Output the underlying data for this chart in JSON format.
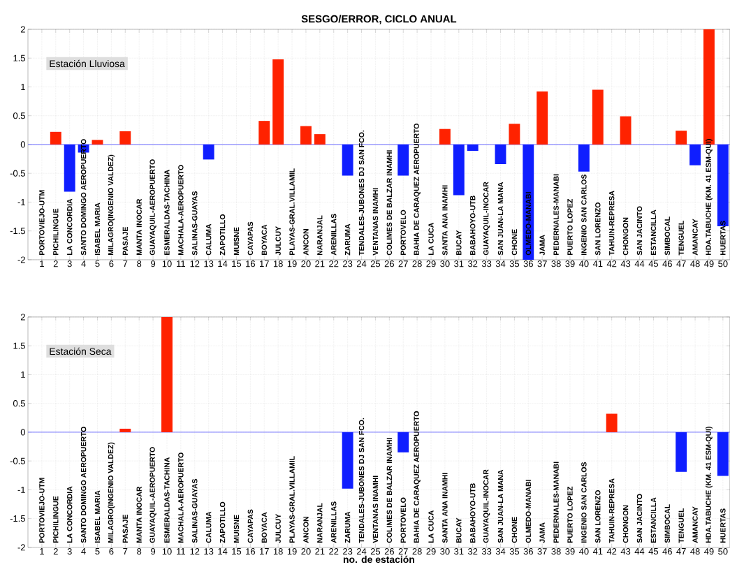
{
  "chart_data": [
    {
      "type": "bar",
      "title": "SESGO/ERROR, CICLO ANUAL",
      "subtitle": "Estación Lluviosa",
      "x": [
        1,
        2,
        3,
        4,
        5,
        6,
        7,
        8,
        9,
        10,
        11,
        12,
        13,
        14,
        15,
        16,
        17,
        18,
        19,
        20,
        21,
        22,
        23,
        24,
        25,
        26,
        27,
        28,
        29,
        30,
        31,
        32,
        33,
        34,
        35,
        36,
        37,
        38,
        39,
        40,
        41,
        42,
        43,
        44,
        45,
        46,
        47,
        48,
        49,
        50
      ],
      "values": [
        0,
        0.22,
        -0.82,
        -0.14,
        0.08,
        0,
        0.23,
        0,
        0,
        0,
        0,
        0,
        -0.26,
        0,
        0,
        0,
        0.41,
        1.48,
        0,
        0.32,
        0.18,
        0,
        -0.54,
        0,
        0,
        0,
        -0.54,
        0,
        0,
        0.27,
        -0.88,
        -0.11,
        0,
        -0.34,
        0.36,
        -2,
        0.92,
        0,
        0,
        -0.47,
        0.95,
        0,
        0.49,
        0,
        0,
        0,
        0.24,
        -0.36,
        2,
        -1.42
      ],
      "colors": [
        "#ff2200",
        "#ff2200",
        "#0f1eff",
        "#0f1eff",
        "#ff2200",
        "#ff2200",
        "#ff2200",
        "#ff2200",
        "#ff2200",
        "#ff2200",
        "#ff2200",
        "#ff2200",
        "#0f1eff",
        "#ff2200",
        "#ff2200",
        "#ff2200",
        "#ff2200",
        "#ff2200",
        "#ff2200",
        "#ff2200",
        "#ff2200",
        "#ff2200",
        "#0f1eff",
        "#ff2200",
        "#ff2200",
        "#ff2200",
        "#0f1eff",
        "#ff2200",
        "#ff2200",
        "#ff2200",
        "#0f1eff",
        "#0f1eff",
        "#ff2200",
        "#0f1eff",
        "#ff2200",
        "#0f1eff",
        "#ff2200",
        "#ff2200",
        "#ff2200",
        "#0f1eff",
        "#ff2200",
        "#ff2200",
        "#ff2200",
        "#ff2200",
        "#ff2200",
        "#ff2200",
        "#ff2200",
        "#0f1eff",
        "#ff2200",
        "#0f1eff"
      ],
      "xlim": [
        0,
        50.5
      ],
      "ylim": [
        -2,
        2
      ],
      "xticks": [
        1,
        2,
        3,
        4,
        5,
        6,
        7,
        8,
        9,
        10,
        11,
        12,
        13,
        14,
        15,
        16,
        17,
        18,
        19,
        20,
        21,
        22,
        23,
        24,
        25,
        26,
        27,
        28,
        29,
        30,
        31,
        32,
        33,
        34,
        35,
        36,
        37,
        38,
        39,
        40,
        41,
        42,
        43,
        44,
        45,
        46,
        47,
        48,
        49,
        50
      ],
      "yticks": [
        -2,
        -1.5,
        -1,
        -0.5,
        0,
        0.5,
        1,
        1.5,
        2
      ],
      "grid": true,
      "ref_lines": [
        {
          "axis": "y",
          "value": 0,
          "color": "#6b6bff"
        }
      ],
      "annotations": [
        "PORTOVIEJO-UTM",
        "PICHILINGUE",
        "LA CONCORDIA",
        "SANTO DOMINGO AEROPUERTO",
        "ISABEL MARIA",
        "MILAGRO(INGENIO VALDEZ)",
        "PASAJE",
        "MANTA INOCAR",
        "GUAYAQUIL-AEROPUERTO",
        "ESMERALDAS-TACHINA",
        "MACHALA-AEROPUERTO",
        "SALINAS-GUAYAS",
        "CALUMA",
        "ZAPOTILLO",
        "MUISNE",
        "CAYAPAS",
        "BOYACA",
        "JULCUY",
        "PLAYAS-GRAL.VILLAMIL",
        "ANCON",
        "NARANJAL",
        "ARENILLAS",
        "ZARUMA",
        "TENDALES-JUBONES DJ SAN FCO.",
        "VENTANAS INAMHI",
        "COLIMES DE BALZAR INAMHI",
        "PORTOVELO",
        "BAHIA DE CARAQUEZ AEROPUERTO",
        "LA CUCA",
        "SANTA ANA INAMHI",
        "BUCAY",
        "BABAHOYO-UTB",
        "GUAYAQUIL-INOCAR",
        "SAN JUAN-LA MANA",
        "CHONE",
        "OLMEDO-MANABI",
        "JAMA",
        "PEDERNALES-MANABI",
        "PUERTO LOPEZ",
        "INGENIO SAN CARLOS",
        "SAN LORENZO",
        "TAHUIN-REPRESA",
        "CHONGON",
        "SAN JACINTO",
        "ESTANCILLA",
        "SIMBOCAL",
        "TENGUEL",
        "AMANCAY",
        "HDA.TABUCHE (KM. 41 ESM-QUI)",
        "HUERTAS"
      ]
    },
    {
      "type": "bar",
      "subtitle": "Estación Seca",
      "xlabel": "no. de estación",
      "x": [
        1,
        2,
        3,
        4,
        5,
        6,
        7,
        8,
        9,
        10,
        11,
        12,
        13,
        14,
        15,
        16,
        17,
        18,
        19,
        20,
        21,
        22,
        23,
        24,
        25,
        26,
        27,
        28,
        29,
        30,
        31,
        32,
        33,
        34,
        35,
        36,
        37,
        38,
        39,
        40,
        41,
        42,
        43,
        44,
        45,
        46,
        47,
        48,
        49,
        50
      ],
      "values": [
        0,
        0,
        0,
        0,
        0,
        0,
        0.06,
        0,
        0,
        2,
        0,
        0,
        0,
        0,
        0,
        0,
        0,
        0,
        0,
        0,
        0,
        0,
        -0.98,
        0,
        0,
        0,
        -0.35,
        0,
        0,
        0,
        0,
        0,
        0,
        0,
        0,
        0,
        0,
        0,
        0,
        0,
        0,
        0.32,
        0,
        0,
        0,
        0,
        -0.69,
        0,
        0,
        -0.76
      ],
      "colors": [
        "#ff2200",
        "#ff2200",
        "#ff2200",
        "#ff2200",
        "#ff2200",
        "#ff2200",
        "#ff2200",
        "#ff2200",
        "#ff2200",
        "#ff2200",
        "#ff2200",
        "#ff2200",
        "#ff2200",
        "#ff2200",
        "#ff2200",
        "#ff2200",
        "#ff2200",
        "#ff2200",
        "#ff2200",
        "#ff2200",
        "#ff2200",
        "#ff2200",
        "#0f1eff",
        "#ff2200",
        "#ff2200",
        "#ff2200",
        "#0f1eff",
        "#ff2200",
        "#ff2200",
        "#ff2200",
        "#ff2200",
        "#ff2200",
        "#ff2200",
        "#ff2200",
        "#ff2200",
        "#ff2200",
        "#ff2200",
        "#ff2200",
        "#ff2200",
        "#ff2200",
        "#ff2200",
        "#ff2200",
        "#ff2200",
        "#ff2200",
        "#ff2200",
        "#ff2200",
        "#0f1eff",
        "#ff2200",
        "#ff2200",
        "#0f1eff"
      ],
      "xlim": [
        0,
        50.5
      ],
      "ylim": [
        -2,
        2
      ],
      "xticks": [
        1,
        2,
        3,
        4,
        5,
        6,
        7,
        8,
        9,
        10,
        11,
        12,
        13,
        14,
        15,
        16,
        17,
        18,
        19,
        20,
        21,
        22,
        23,
        24,
        25,
        26,
        27,
        28,
        29,
        30,
        31,
        32,
        33,
        34,
        35,
        36,
        37,
        38,
        39,
        40,
        41,
        42,
        43,
        44,
        45,
        46,
        47,
        48,
        49,
        50
      ],
      "yticks": [
        -2,
        -1.5,
        -1,
        -0.5,
        0,
        0.5,
        1,
        1.5,
        2
      ],
      "grid": true,
      "ref_lines": [
        {
          "axis": "y",
          "value": 0,
          "color": "#6b6bff"
        }
      ],
      "annotations": [
        "PORTOVIEJO-UTM",
        "PICHILINGUE",
        "LA CONCORDIA",
        "SANTO DOMINGO AEROPUERTO",
        "ISABEL MARIA",
        "MILAGRO(INGENIO VALDEZ)",
        "PASAJE",
        "MANTA INOCAR",
        "GUAYAQUIL-AEROPUERTO",
        "ESMERALDAS-TACHINA",
        "MACHALA-AEROPUERTO",
        "SALINAS-GUAYAS",
        "CALUMA",
        "ZAPOTILLO",
        "MUISNE",
        "CAYAPAS",
        "BOYACA",
        "JULCUY",
        "PLAYAS-GRAL.VILLAMIL",
        "ANCON",
        "NARANJAL",
        "ARENILLAS",
        "ZARUMA",
        "TENDALES-JUBONES DJ SAN FCO.",
        "VENTANAS INAMHI",
        "COLIMES DE BALZAR INAMHI",
        "PORTOVELO",
        "BAHIA DE CARAQUEZ AEROPUERTO",
        "LA CUCA",
        "SANTA ANA INAMHI",
        "BUCAY",
        "BABAHOYO-UTB",
        "GUAYAQUIL-INOCAR",
        "SAN JUAN-LA MANA",
        "CHONE",
        "OLMEDO-MANABI",
        "JAMA",
        "PEDERNALES-MANABI",
        "PUERTO LOPEZ",
        "INGENIO SAN CARLOS",
        "SAN LORENZO",
        "TAHUIN-REPRESA",
        "CHONGON",
        "SAN JACINTO",
        "ESTANCILLA",
        "SIMBOCAL",
        "TENGUEL",
        "AMANCAY",
        "HDA.TABUCHE (KM. 41 ESM-QUI)",
        "HUERTAS"
      ]
    }
  ]
}
